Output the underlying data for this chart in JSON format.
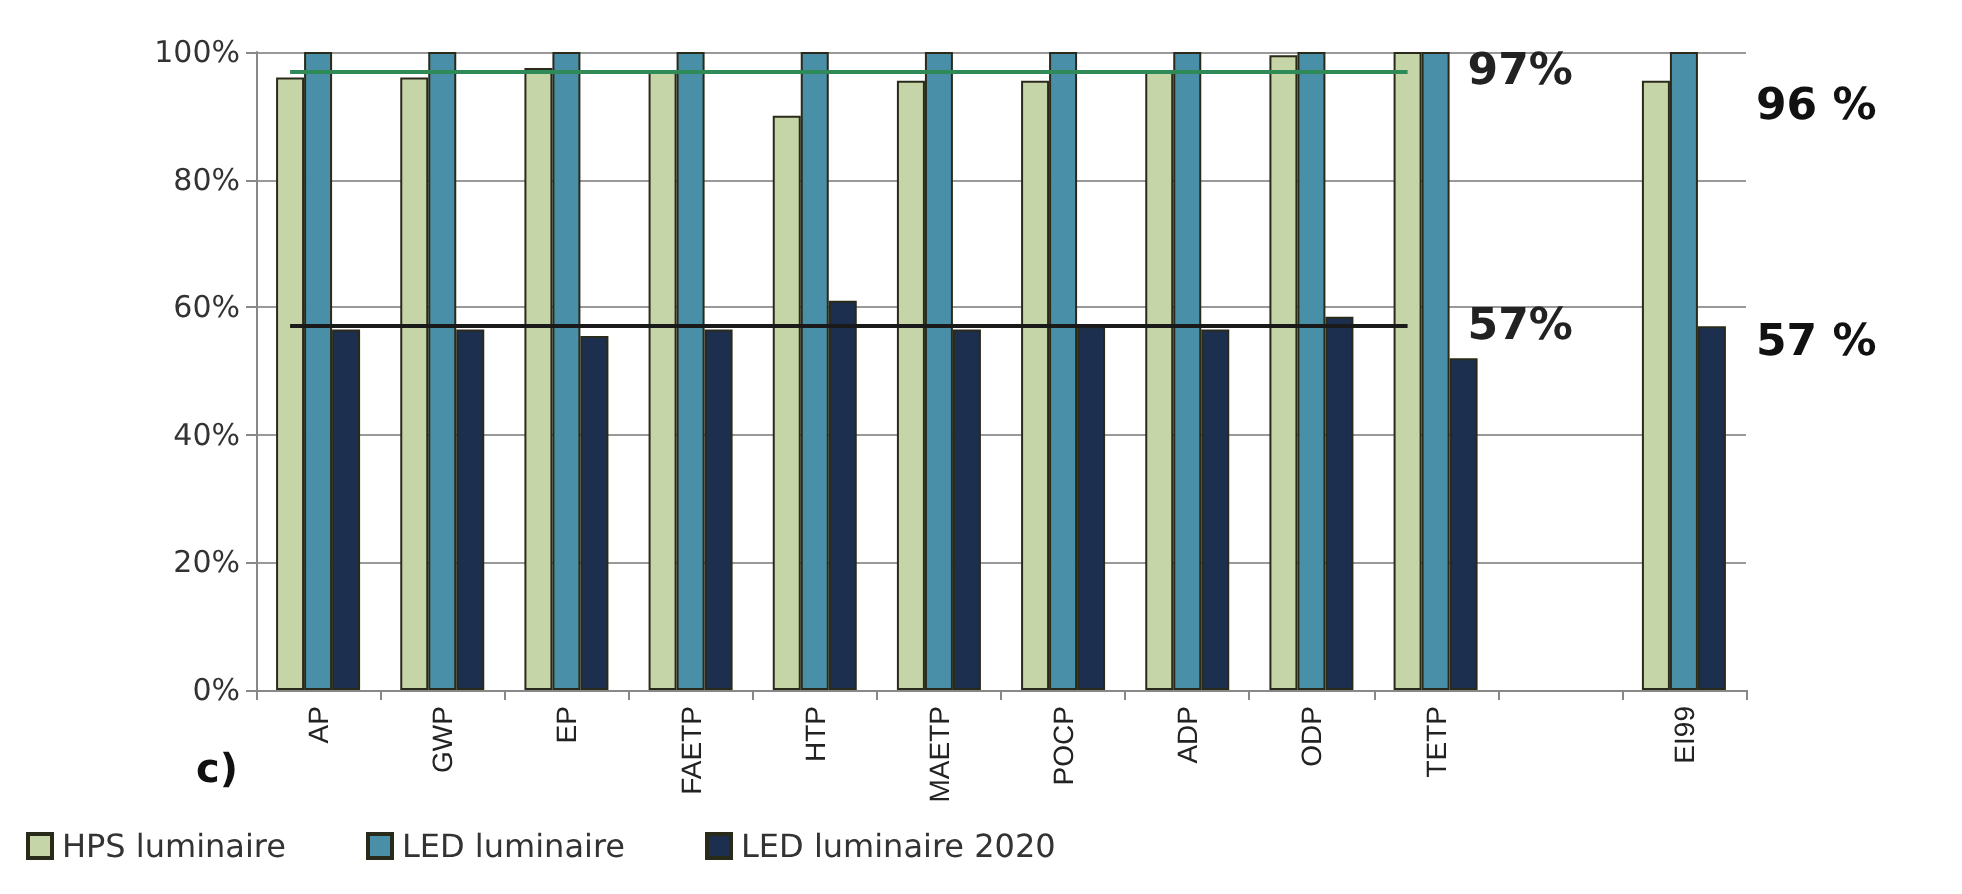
{
  "chart_data": {
    "type": "bar",
    "categories": [
      "AP",
      "GWP",
      "EP",
      "FAETP",
      "HTP",
      "MAETP",
      "POCP",
      "ADP",
      "ODP",
      "TETP",
      null,
      "EI99"
    ],
    "series": [
      {
        "name": "HPS luminaire",
        "color": "#c6d5a8",
        "values": [
          96,
          96,
          97.5,
          97,
          90,
          95.5,
          95.5,
          97,
          99.5,
          100,
          null,
          95.5
        ]
      },
      {
        "name": "LED luminaire",
        "color": "#4a8fa8",
        "values": [
          100,
          100,
          100,
          100,
          100,
          100,
          100,
          100,
          100,
          100,
          null,
          100
        ]
      },
      {
        "name": "LED luminaire 2020",
        "color": "#1c2f4f",
        "values": [
          56.5,
          56.5,
          55.5,
          56.5,
          61,
          56.5,
          57,
          56.5,
          58.5,
          52,
          null,
          57
        ]
      }
    ],
    "ylim": [
      0,
      100
    ],
    "yticks": [
      {
        "value": 0,
        "label": "0%"
      },
      {
        "value": 20,
        "label": "20%"
      },
      {
        "value": 40,
        "label": "40%"
      },
      {
        "value": 60,
        "label": "60%"
      },
      {
        "value": 80,
        "label": "80%"
      },
      {
        "value": 100,
        "label": "100%"
      }
    ],
    "ref_lines": [
      {
        "axis": "y",
        "value": 97,
        "label": "97%",
        "color": "#2e8b57"
      },
      {
        "axis": "y",
        "value": 57,
        "label": "57%",
        "color": "#1a1a1a"
      }
    ],
    "annotations": [
      "96 %",
      "57 %",
      "c)"
    ],
    "grid": "y",
    "legend": "bottom"
  }
}
